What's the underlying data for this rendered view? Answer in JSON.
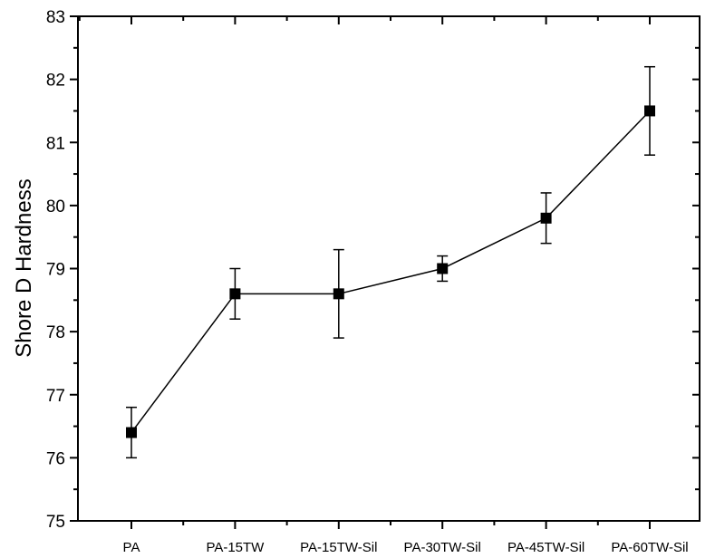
{
  "chart_data": {
    "type": "line",
    "title": "",
    "xlabel": "",
    "ylabel": "Shore D Hardness",
    "ylim": [
      75,
      83
    ],
    "yticks": [
      75,
      76,
      77,
      78,
      79,
      80,
      81,
      82,
      83
    ],
    "yminor_step": 0.5,
    "grid": false,
    "legend": null,
    "categories": [
      "PA",
      "PA-15TW",
      "PA-15TW-Sil",
      "PA-30TW-Sil",
      "PA-45TW-Sil",
      "PA-60TW-Sil"
    ],
    "series": [
      {
        "name": "Shore D Hardness",
        "marker": "square",
        "color": "#000000",
        "values": [
          76.4,
          78.6,
          78.6,
          79.0,
          79.8,
          81.5
        ],
        "error_low": [
          76.0,
          78.2,
          77.9,
          78.8,
          79.4,
          80.8
        ],
        "error_high": [
          76.8,
          79.0,
          79.3,
          79.2,
          80.2,
          82.2
        ]
      }
    ]
  }
}
